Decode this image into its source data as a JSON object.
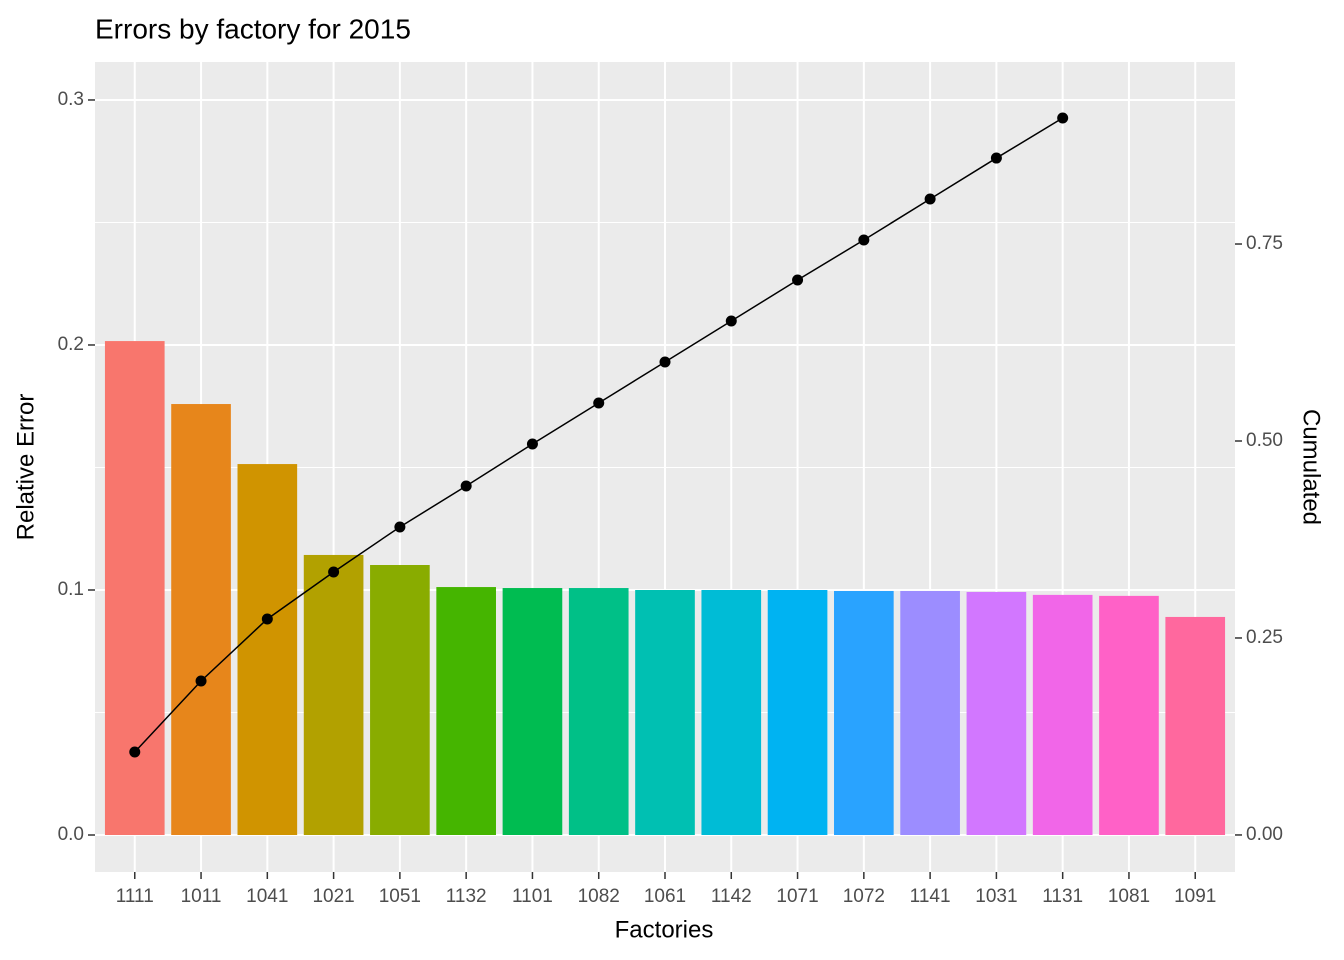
{
  "chart_data": {
    "type": "bar",
    "title": "Errors by factory for 2015",
    "x_label": "Factories",
    "y_label": "Relative Error",
    "y2_label": "Cumulated",
    "categories": [
      "1111",
      "1011",
      "1041",
      "1021",
      "1051",
      "1132",
      "1101",
      "1082",
      "1061",
      "1142",
      "1071",
      "1072",
      "1141",
      "1031",
      "1131",
      "1081",
      "1091"
    ],
    "series": [
      {
        "type": "bar",
        "colors": [
          "#F8766D",
          "#E7861B",
          "#D09400",
          "#B2A100",
          "#89AC00",
          "#45B500",
          "#00BC51",
          "#00C087",
          "#00C0B2",
          "#00BCD6",
          "#00B3F2",
          "#29A3FF",
          "#9C8DFF",
          "#D277FF",
          "#F166E8",
          "#FF61C7",
          "#FF689E"
        ],
        "values": [
          0.2016,
          0.1759,
          0.1514,
          0.1143,
          0.1102,
          0.1012,
          0.1008,
          0.1008,
          0.1,
          0.1,
          0.1,
          0.0996,
          0.0996,
          0.0992,
          0.098,
          0.0976,
          0.089
        ]
      },
      {
        "type": "line",
        "axis": "y2",
        "color": "#000000",
        "values": [
          0.1053,
          0.1954,
          0.2741,
          0.3338,
          0.3909,
          0.4429,
          0.4962,
          0.5482,
          0.6003,
          0.6523,
          0.7043,
          0.7551,
          0.8071,
          0.8591,
          0.9099,
          null,
          null
        ]
      }
    ],
    "ylim": [
      -0.0151,
      0.3155
    ],
    "yticks": [
      {
        "value": 0,
        "label": "0.0"
      },
      {
        "value": 0.1,
        "label": "0.1"
      },
      {
        "value": 0.2,
        "label": "0.2"
      },
      {
        "value": 0.3,
        "label": "0.3"
      }
    ],
    "y2lim": [
      -0.047,
      0.981
    ],
    "y2ticks": [
      {
        "value": 0,
        "label": "0.00"
      },
      {
        "value": 0.25,
        "label": "0.25"
      },
      {
        "value": 0.5,
        "label": "0.50"
      },
      {
        "value": 0.75,
        "label": "0.75"
      }
    ],
    "grid": true
  }
}
